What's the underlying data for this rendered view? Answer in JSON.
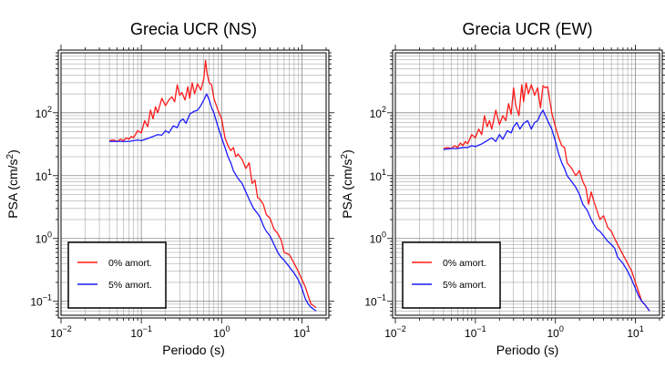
{
  "colors": {
    "series_0": "#ff1a1a",
    "series_5": "#1a1aff",
    "grid": "#888888",
    "frame": "#000000"
  },
  "chart_data": [
    {
      "type": "line",
      "title": "Grecia UCR (NS)",
      "xlabel": "Periodo (s)",
      "ylabel": "PSA (cm/s",
      "ylabel_sup": "2",
      "ylabel_close": ")",
      "xscale": "log",
      "yscale": "log",
      "xlim": [
        0.01,
        20
      ],
      "ylim": [
        0.06,
        900
      ],
      "grid": true,
      "legend_position": "bottom-left",
      "x_ticks": [
        {
          "base": "10",
          "exp": "−2",
          "value": 0.01
        },
        {
          "base": "10",
          "exp": "−1",
          "value": 0.1
        },
        {
          "base": "10",
          "exp": "0",
          "value": 1
        },
        {
          "base": "10",
          "exp": "1",
          "value": 10
        }
      ],
      "y_ticks": [
        {
          "base": "10",
          "exp": "−1",
          "value": 0.1
        },
        {
          "base": "10",
          "exp": "0",
          "value": 1
        },
        {
          "base": "10",
          "exp": "1",
          "value": 10
        },
        {
          "base": "10",
          "exp": "2",
          "value": 100
        }
      ],
      "series": [
        {
          "name": "0% amort.",
          "color": "#ff1a1a",
          "x": [
            0.04,
            0.045,
            0.05,
            0.055,
            0.06,
            0.065,
            0.07,
            0.075,
            0.08,
            0.09,
            0.1,
            0.11,
            0.12,
            0.13,
            0.14,
            0.15,
            0.16,
            0.18,
            0.2,
            0.22,
            0.24,
            0.26,
            0.28,
            0.3,
            0.32,
            0.35,
            0.38,
            0.4,
            0.43,
            0.46,
            0.5,
            0.55,
            0.6,
            0.63,
            0.66,
            0.7,
            0.75,
            0.8,
            0.9,
            1.0,
            1.1,
            1.2,
            1.3,
            1.4,
            1.5,
            1.6,
            1.8,
            2.0,
            2.2,
            2.4,
            2.6,
            2.8,
            3.0,
            3.3,
            3.6,
            4.0,
            4.5,
            5.0,
            5.5,
            6.0,
            7.0,
            8.0,
            9.0,
            10.0,
            11.0,
            12.0,
            13.0,
            15.0
          ],
          "y": [
            36,
            37,
            35,
            38,
            36,
            40,
            38,
            42,
            40,
            52,
            48,
            75,
            60,
            110,
            80,
            125,
            100,
            170,
            130,
            160,
            180,
            150,
            280,
            190,
            210,
            160,
            260,
            170,
            300,
            200,
            290,
            230,
            350,
            680,
            420,
            300,
            280,
            170,
            110,
            80,
            40,
            30,
            25,
            28,
            20,
            22,
            18,
            13,
            16,
            7.5,
            8.5,
            4.5,
            4.2,
            3.5,
            2.4,
            2.1,
            1.4,
            1.2,
            0.95,
            0.6,
            0.55,
            0.4,
            0.3,
            0.22,
            0.17,
            0.12,
            0.09,
            0.08
          ]
        },
        {
          "name": "5% amort.",
          "color": "#1a1aff",
          "x": [
            0.04,
            0.05,
            0.06,
            0.07,
            0.08,
            0.09,
            0.1,
            0.12,
            0.14,
            0.16,
            0.18,
            0.2,
            0.22,
            0.25,
            0.28,
            0.3,
            0.33,
            0.36,
            0.4,
            0.45,
            0.5,
            0.55,
            0.6,
            0.65,
            0.7,
            0.75,
            0.8,
            0.9,
            1.0,
            1.1,
            1.2,
            1.3,
            1.4,
            1.6,
            1.8,
            2.0,
            2.2,
            2.5,
            2.8,
            3.0,
            3.3,
            3.6,
            4.0,
            4.5,
            5.0,
            5.5,
            6.0,
            7.0,
            8.0,
            9.0,
            10.0,
            11.0,
            12.0,
            13.0,
            15.0
          ],
          "y": [
            35,
            35,
            35,
            35,
            36,
            37,
            36,
            39,
            42,
            45,
            44,
            52,
            48,
            62,
            58,
            72,
            80,
            68,
            95,
            105,
            110,
            130,
            160,
            200,
            160,
            120,
            100,
            60,
            40,
            28,
            20,
            16,
            12,
            9,
            7.5,
            5.5,
            4.2,
            3.0,
            2.5,
            2.2,
            1.6,
            1.3,
            1.1,
            0.8,
            0.6,
            0.5,
            0.45,
            0.35,
            0.28,
            0.22,
            0.16,
            0.11,
            0.09,
            0.08,
            0.07
          ]
        }
      ]
    },
    {
      "type": "line",
      "title": "Grecia UCR (EW)",
      "xlabel": "Periodo (s)",
      "ylabel": "PSA (cm/s",
      "ylabel_sup": "2",
      "ylabel_close": ")",
      "xscale": "log",
      "yscale": "log",
      "xlim": [
        0.01,
        20
      ],
      "ylim": [
        0.06,
        900
      ],
      "grid": true,
      "legend_position": "bottom-left",
      "x_ticks": [
        {
          "base": "10",
          "exp": "−2",
          "value": 0.01
        },
        {
          "base": "10",
          "exp": "−1",
          "value": 0.1
        },
        {
          "base": "10",
          "exp": "0",
          "value": 1
        },
        {
          "base": "10",
          "exp": "1",
          "value": 10
        }
      ],
      "y_ticks": [
        {
          "base": "10",
          "exp": "−1",
          "value": 0.1
        },
        {
          "base": "10",
          "exp": "0",
          "value": 1
        },
        {
          "base": "10",
          "exp": "1",
          "value": 10
        },
        {
          "base": "10",
          "exp": "2",
          "value": 100
        }
      ],
      "series": [
        {
          "name": "0% amort.",
          "color": "#ff1a1a",
          "x": [
            0.04,
            0.045,
            0.05,
            0.055,
            0.06,
            0.065,
            0.07,
            0.075,
            0.08,
            0.09,
            0.1,
            0.11,
            0.12,
            0.13,
            0.14,
            0.15,
            0.16,
            0.18,
            0.2,
            0.22,
            0.24,
            0.26,
            0.28,
            0.3,
            0.32,
            0.35,
            0.38,
            0.4,
            0.43,
            0.46,
            0.5,
            0.55,
            0.6,
            0.65,
            0.7,
            0.75,
            0.8,
            0.9,
            1.0,
            1.1,
            1.2,
            1.3,
            1.4,
            1.6,
            1.8,
            2.0,
            2.2,
            2.4,
            2.6,
            2.8,
            3.0,
            3.3,
            3.6,
            4.0,
            4.5,
            5.0,
            5.5,
            6.0,
            7.0,
            8.0,
            9.0,
            10.0,
            11.0,
            12.0,
            13.0,
            15.0
          ],
          "y": [
            27,
            28,
            27,
            30,
            28,
            33,
            30,
            35,
            32,
            45,
            40,
            55,
            45,
            90,
            60,
            75,
            55,
            110,
            65,
            90,
            75,
            140,
            95,
            250,
            130,
            90,
            280,
            150,
            300,
            200,
            280,
            190,
            250,
            120,
            270,
            250,
            260,
            100,
            60,
            40,
            30,
            28,
            16,
            13,
            10,
            12,
            8,
            6.5,
            3.5,
            5.5,
            4.0,
            2.8,
            2.0,
            2.3,
            1.5,
            1.3,
            1.0,
            0.8,
            0.55,
            0.4,
            0.3,
            0.2,
            0.14,
            0.1,
            0.09,
            0.07
          ]
        },
        {
          "name": "5% amort.",
          "color": "#1a1aff",
          "x": [
            0.04,
            0.05,
            0.06,
            0.07,
            0.08,
            0.09,
            0.1,
            0.12,
            0.14,
            0.16,
            0.18,
            0.2,
            0.22,
            0.25,
            0.28,
            0.3,
            0.33,
            0.36,
            0.4,
            0.45,
            0.5,
            0.55,
            0.6,
            0.65,
            0.7,
            0.75,
            0.8,
            0.9,
            1.0,
            1.1,
            1.2,
            1.3,
            1.4,
            1.6,
            1.8,
            2.0,
            2.2,
            2.5,
            2.8,
            3.0,
            3.3,
            3.6,
            4.0,
            4.5,
            5.0,
            5.5,
            6.0,
            7.0,
            8.0,
            9.0,
            10.0,
            11.0,
            12.0,
            13.0,
            15.0
          ],
          "y": [
            26,
            27,
            27,
            28,
            28,
            30,
            29,
            32,
            36,
            40,
            35,
            45,
            38,
            52,
            48,
            60,
            70,
            55,
            68,
            75,
            55,
            70,
            75,
            95,
            110,
            90,
            75,
            55,
            35,
            22,
            16,
            13,
            10,
            8,
            6.5,
            5.0,
            3.5,
            2.8,
            2.0,
            1.7,
            1.4,
            1.3,
            1.1,
            0.9,
            0.8,
            0.7,
            0.5,
            0.4,
            0.3,
            0.22,
            0.16,
            0.12,
            0.1,
            0.09,
            0.07
          ]
        }
      ]
    }
  ]
}
